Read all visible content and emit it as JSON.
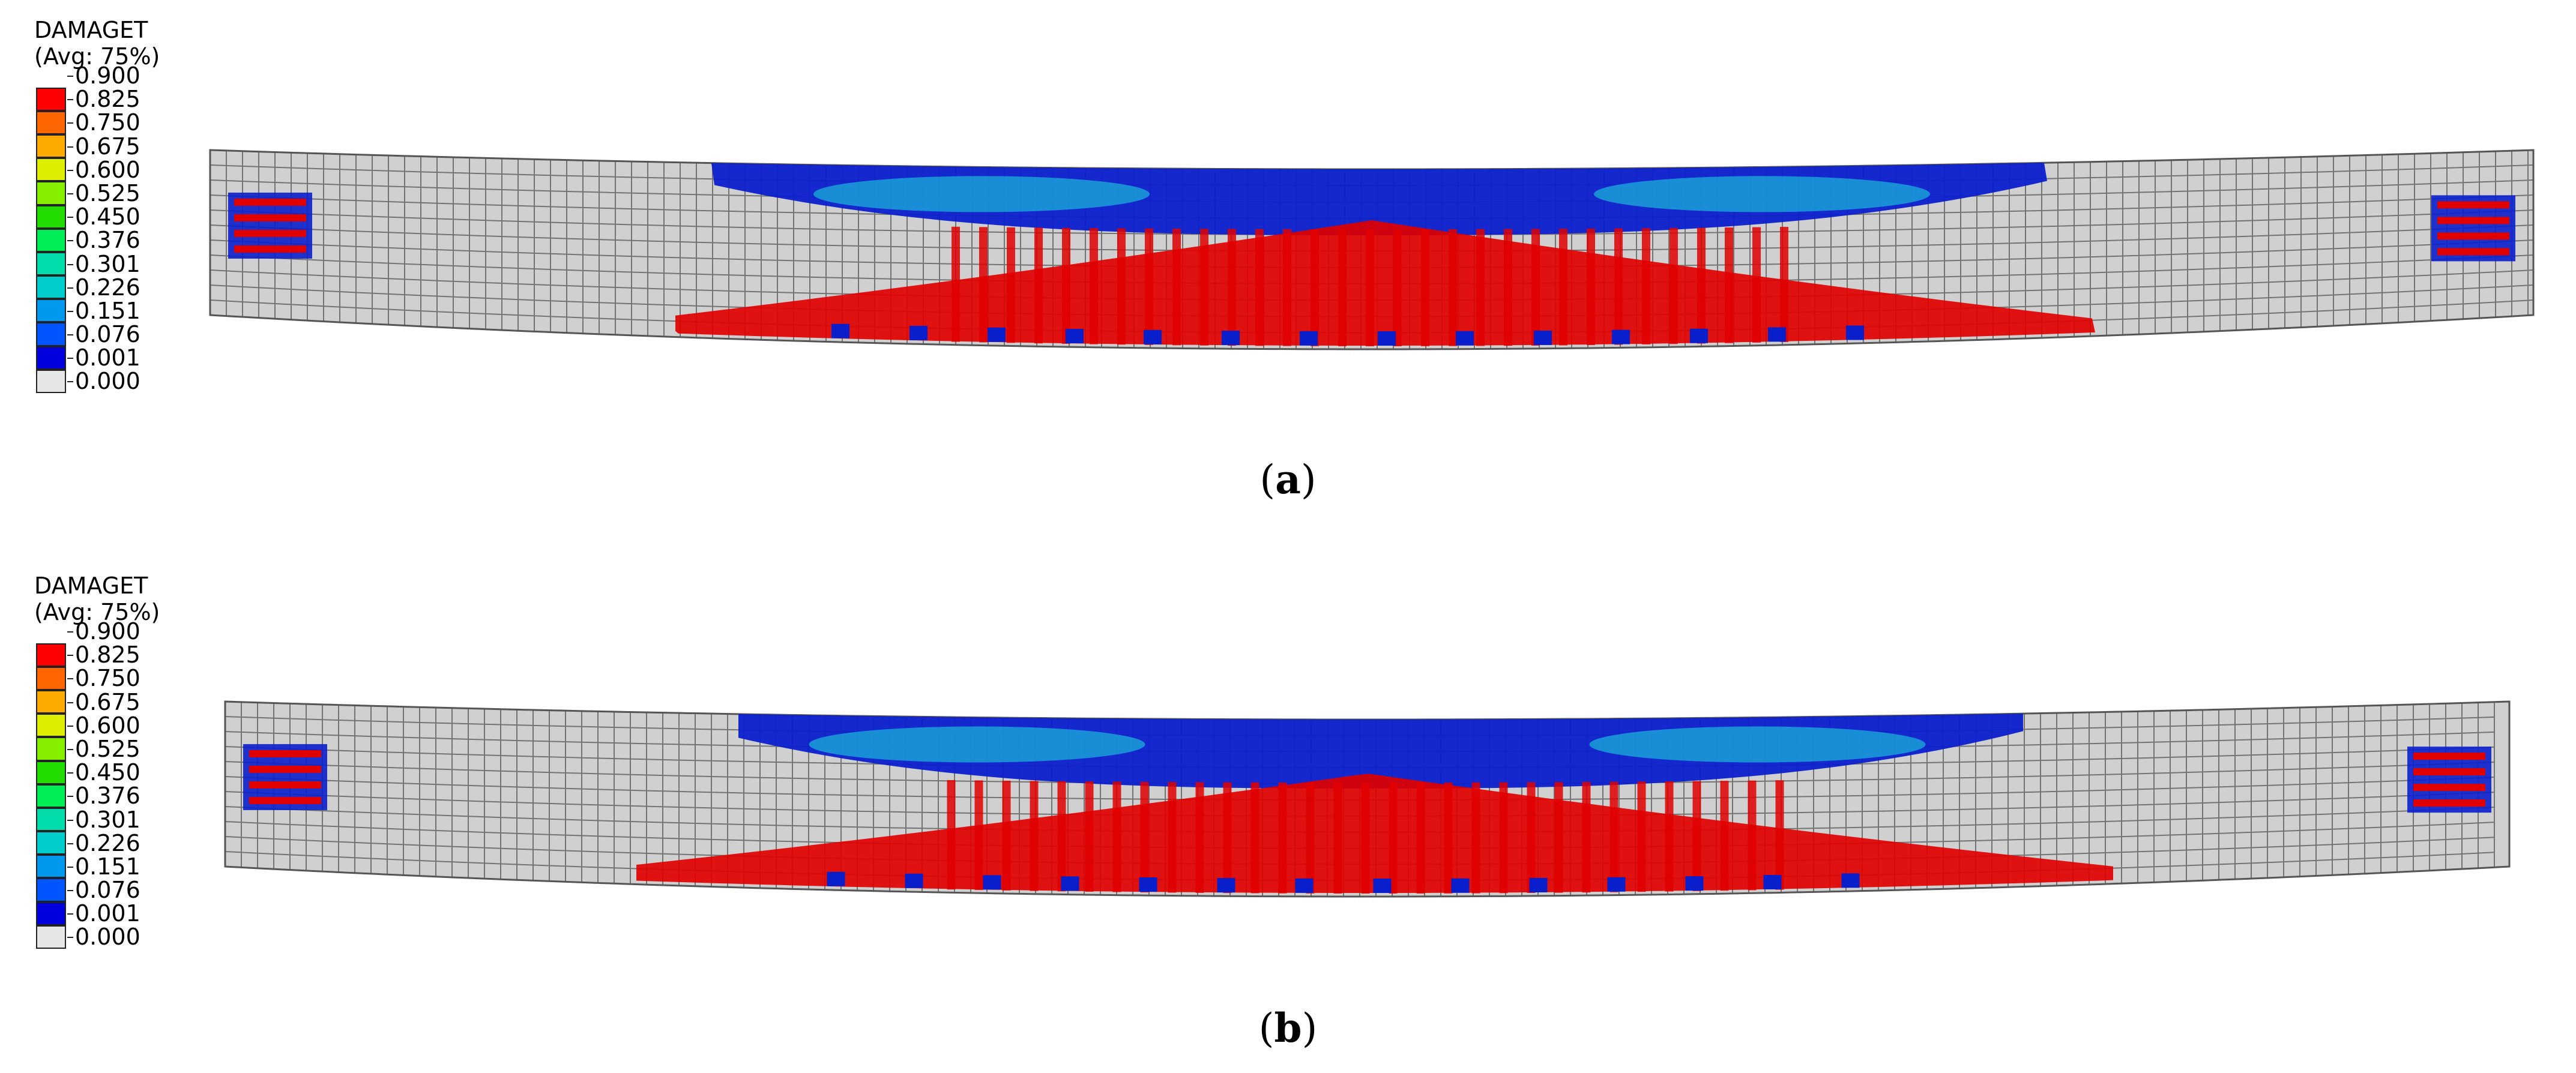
{
  "figure": {
    "panels": [
      {
        "id": "a",
        "caption_open": "(",
        "caption_letter": "a",
        "caption_close": ")",
        "legend": {
          "title": "DAMAGET",
          "subtitle": "(Avg: 75%)",
          "values": [
            "0.900",
            "0.825",
            "0.750",
            "0.675",
            "0.600",
            "0.525",
            "0.450",
            "0.376",
            "0.301",
            "0.226",
            "0.151",
            "0.076",
            "0.001",
            "0.000"
          ],
          "colors": [
            "#ff0000",
            "#ff6600",
            "#ffaa00",
            "#ddee00",
            "#88ee00",
            "#22dd00",
            "#00ee55",
            "#00ddaa",
            "#00cccc",
            "#0099ee",
            "#0055ff",
            "#0000dd",
            "#e6e6e6"
          ]
        }
      },
      {
        "id": "b",
        "caption_open": "(",
        "caption_letter": "b",
        "caption_close": ")",
        "legend": {
          "title": "DAMAGET",
          "subtitle": "(Avg: 75%)",
          "values": [
            "0.900",
            "0.825",
            "0.750",
            "0.675",
            "0.600",
            "0.525",
            "0.450",
            "0.376",
            "0.301",
            "0.226",
            "0.151",
            "0.076",
            "0.001",
            "0.000"
          ],
          "colors": [
            "#ff0000",
            "#ff6600",
            "#ffaa00",
            "#ddee00",
            "#88ee00",
            "#22dd00",
            "#00ee55",
            "#00ddaa",
            "#00cccc",
            "#0099ee",
            "#0055ff",
            "#0000dd",
            "#e6e6e6"
          ]
        }
      }
    ],
    "colors": {
      "mesh_fill": "#d0d0d0",
      "mesh_line": "#555555",
      "damage_high": "#e00000",
      "damage_low": "#0a1fcc",
      "damage_mid": "#1aa0d8"
    }
  }
}
